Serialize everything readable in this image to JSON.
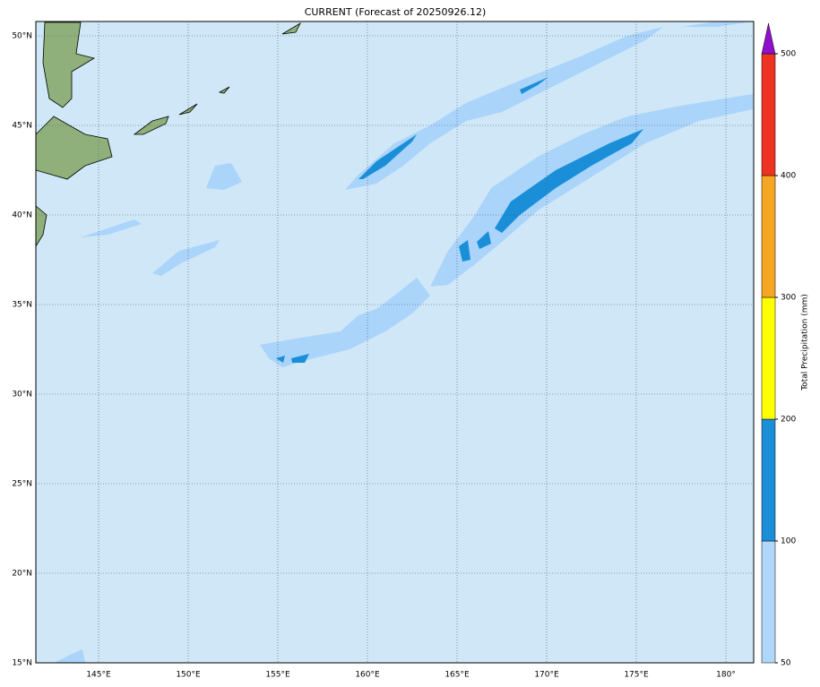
{
  "map": {
    "title": "CURRENT (Forecast of 20250926.12)",
    "lat_labels": [
      {
        "value": 15,
        "label": "15°N"
      },
      {
        "value": 20,
        "label": "20°N"
      },
      {
        "value": 25,
        "label": "25°N"
      },
      {
        "value": 30,
        "label": "30°N"
      },
      {
        "value": 35,
        "label": "35°N"
      },
      {
        "value": 40,
        "label": "40°N"
      },
      {
        "value": 45,
        "label": "45°N"
      },
      {
        "value": 50,
        "label": "50°N"
      }
    ],
    "lon_labels": [
      {
        "value": 145,
        "label": "145°E"
      },
      {
        "value": 150,
        "label": "150°E"
      },
      {
        "value": 155,
        "label": "155°E"
      },
      {
        "value": 160,
        "label": "160°E"
      },
      {
        "value": 165,
        "label": "165°E"
      },
      {
        "value": 170,
        "label": "170°E"
      },
      {
        "value": 175,
        "label": "175°E"
      },
      {
        "value": 180,
        "label": "180°"
      }
    ],
    "colorbar": {
      "label": "Total Precipitation (mm)",
      "levels": [
        50,
        100,
        200,
        300,
        400,
        500
      ],
      "colors": [
        "#b0d6fa",
        "#1a8fd8",
        "#ffff00",
        "#f5a623",
        "#ee3322"
      ],
      "extend_color": "#8e10cc"
    }
  }
}
